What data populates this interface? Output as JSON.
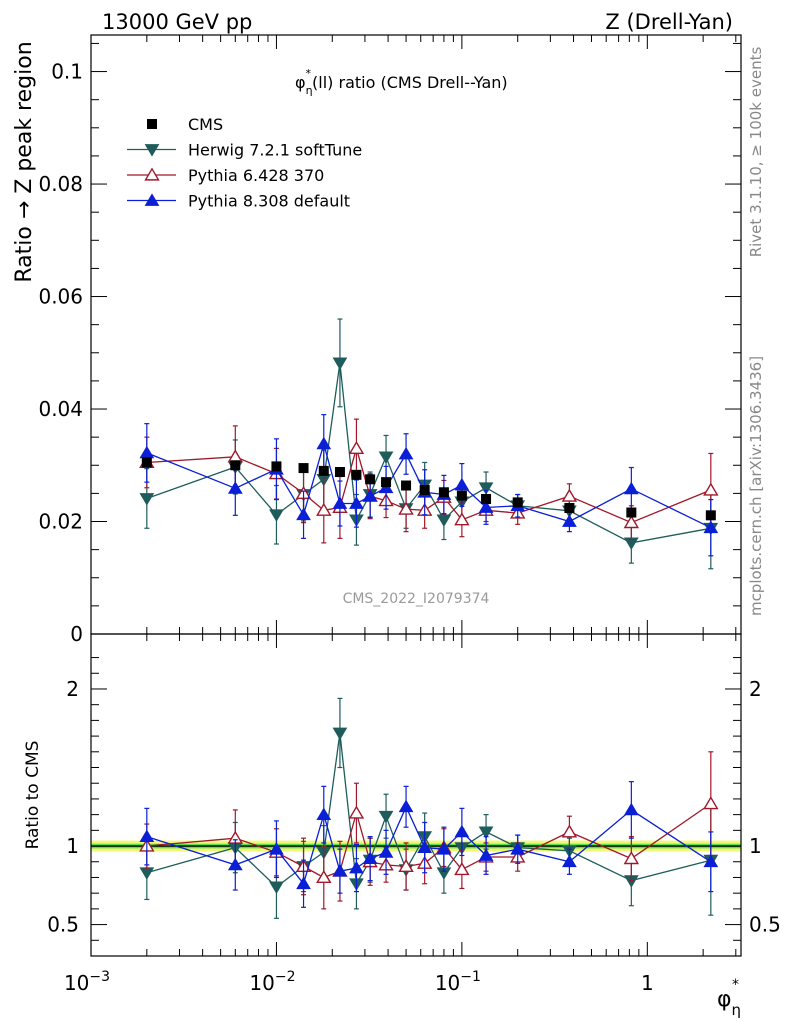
{
  "header": {
    "left": "13000 GeV pp",
    "right": "Z (Drell-Yan)"
  },
  "side_text": {
    "rivet": "Rivet 3.1.10, ≥ 100k events",
    "mcplots": "mcplots.cern.ch [arXiv:1306.3436]"
  },
  "watermark": "CMS_2022_I2079374",
  "colors": {
    "CMS": "#000000",
    "Herwig": "#1f5c5c",
    "Pythia6": "#a0182a",
    "Pythia8": "#0a1fd6",
    "band_inner": "#5ee04d",
    "band_outer": "#f2f77a"
  },
  "chart_data": [
    {
      "type": "scatter",
      "panel": "main",
      "title_parts": {
        "phi": "φ",
        "star": "*",
        "eta": "η",
        "rest": "(ll) ratio (CMS Drell--Yan)"
      },
      "ylabel": "Ratio → Z peak region",
      "ylim": [
        0,
        0.1065
      ],
      "xscale": "log",
      "xlim": [
        0.001,
        3.2
      ],
      "yticks": [
        0,
        0.02,
        0.04,
        0.06,
        0.08,
        0.1
      ],
      "ytick_labels": [
        "0",
        "0.02",
        "0.04",
        "0.06",
        "0.08",
        "0.1"
      ],
      "legend_position": "top-left",
      "series": [
        {
          "name": "CMS",
          "marker": "square",
          "x": [
            0.002,
            0.006,
            0.01,
            0.014,
            0.018,
            0.022,
            0.027,
            0.032,
            0.039,
            0.05,
            0.063,
            0.08,
            0.1,
            0.135,
            0.2,
            0.38,
            0.82,
            2.2
          ],
          "y": [
            0.0305,
            0.03,
            0.0298,
            0.0295,
            0.029,
            0.0288,
            0.0283,
            0.0275,
            0.027,
            0.0264,
            0.0256,
            0.0252,
            0.0246,
            0.024,
            0.0234,
            0.0224,
            0.0216,
            0.0211
          ]
        },
        {
          "name": "Herwig 7.2.1 softTune",
          "marker": "triangle-down",
          "x": [
            0.002,
            0.006,
            0.01,
            0.014,
            0.018,
            0.022,
            0.027,
            0.032,
            0.039,
            0.05,
            0.063,
            0.08,
            0.1,
            0.135,
            0.2,
            0.38,
            0.82,
            2.2
          ],
          "y": [
            0.0241,
            0.0297,
            0.0212,
            0.0248,
            0.0275,
            0.0482,
            0.0203,
            0.0248,
            0.0315,
            0.0223,
            0.0265,
            0.0203,
            0.0235,
            0.026,
            0.0228,
            0.0219,
            0.0162,
            0.0188
          ],
          "err": [
            0.0053,
            0.0048,
            0.0052,
            0.0047,
            0.0052,
            0.0078,
            0.0045,
            0.004,
            0.0038,
            0.0035,
            0.004,
            0.0035,
            0.0032,
            0.0028,
            0.002,
            0.002,
            0.0036,
            0.0072
          ]
        },
        {
          "name": "Pythia 6.428 370",
          "marker": "triangle-up-open",
          "x": [
            0.002,
            0.006,
            0.01,
            0.014,
            0.018,
            0.022,
            0.027,
            0.032,
            0.039,
            0.05,
            0.063,
            0.08,
            0.1,
            0.135,
            0.2,
            0.38,
            0.82,
            2.2
          ],
          "y": [
            0.0305,
            0.0315,
            0.0285,
            0.025,
            0.022,
            0.0225,
            0.033,
            0.0245,
            0.0237,
            0.0222,
            0.022,
            0.0243,
            0.0203,
            0.022,
            0.0215,
            0.0245,
            0.0198,
            0.0256
          ],
          "err": [
            0.0045,
            0.0055,
            0.0045,
            0.0052,
            0.0058,
            0.0055,
            0.0052,
            0.004,
            0.003,
            0.004,
            0.0032,
            0.003,
            0.003,
            0.002,
            0.002,
            0.0022,
            0.003,
            0.0065
          ]
        },
        {
          "name": "Pythia 8.308 default",
          "marker": "triangle-up",
          "x": [
            0.002,
            0.006,
            0.01,
            0.014,
            0.018,
            0.022,
            0.027,
            0.032,
            0.039,
            0.05,
            0.063,
            0.08,
            0.1,
            0.135,
            0.2,
            0.38,
            0.82,
            2.2
          ],
          "y": [
            0.0322,
            0.0259,
            0.0293,
            0.0212,
            0.0338,
            0.0232,
            0.0232,
            0.0245,
            0.026,
            0.032,
            0.0252,
            0.0248,
            0.0265,
            0.0225,
            0.0228,
            0.02,
            0.0258,
            0.0189
          ],
          "err": [
            0.0052,
            0.0048,
            0.0054,
            0.0042,
            0.0052,
            0.004,
            0.0042,
            0.0038,
            0.0038,
            0.0036,
            0.004,
            0.0034,
            0.0038,
            0.003,
            0.002,
            0.0018,
            0.0038,
            0.005
          ]
        }
      ]
    },
    {
      "type": "scatter",
      "panel": "ratio",
      "ylabel": "Ratio to CMS",
      "ylim": [
        0.3,
        2.35
      ],
      "xscale": "log",
      "xlim": [
        0.001,
        3.2
      ],
      "xlabel_parts": {
        "phi": "φ",
        "star": "*",
        "eta": "η"
      },
      "yticks": [
        0.5,
        1,
        2
      ],
      "ytick_labels": [
        "0.5",
        "1",
        "2"
      ],
      "xticks": [
        0.001,
        0.01,
        0.1,
        1
      ],
      "xtick_labels": [
        {
          "base": "10",
          "exp": "−3"
        },
        {
          "base": "10",
          "exp": "−2"
        },
        {
          "base": "10",
          "exp": "−1"
        },
        {
          "base": "1",
          "exp": ""
        }
      ],
      "band_inner": [
        0.985,
        1.015
      ],
      "band_outer": [
        0.965,
        1.035
      ],
      "series": [
        {
          "name": "Herwig 7.2.1 softTune",
          "marker": "triangle-down",
          "x": [
            0.002,
            0.006,
            0.01,
            0.014,
            0.018,
            0.022,
            0.027,
            0.032,
            0.039,
            0.05,
            0.063,
            0.08,
            0.1,
            0.135,
            0.2,
            0.38,
            0.82,
            2.2
          ],
          "y": [
            0.83,
            0.99,
            0.74,
            0.87,
            0.96,
            1.72,
            0.76,
            0.91,
            1.19,
            0.85,
            1.06,
            0.83,
            0.99,
            1.09,
            0.99,
            0.97,
            0.78,
            0.91
          ],
          "err": [
            0.17,
            0.16,
            0.2,
            0.16,
            0.17,
            0.22,
            0.16,
            0.14,
            0.14,
            0.13,
            0.15,
            0.13,
            0.12,
            0.11,
            0.08,
            0.08,
            0.16,
            0.35
          ]
        },
        {
          "name": "Pythia 6.428 370",
          "marker": "triangle-up-open",
          "x": [
            0.002,
            0.006,
            0.01,
            0.014,
            0.018,
            0.022,
            0.027,
            0.032,
            0.039,
            0.05,
            0.063,
            0.08,
            0.1,
            0.135,
            0.2,
            0.38,
            0.82,
            2.2
          ],
          "y": [
            1.0,
            1.05,
            0.96,
            0.87,
            0.8,
            0.84,
            1.21,
            0.9,
            0.88,
            0.87,
            0.89,
            0.99,
            0.85,
            0.93,
            0.93,
            1.09,
            0.92,
            1.27
          ],
          "err": [
            0.14,
            0.18,
            0.15,
            0.18,
            0.2,
            0.19,
            0.19,
            0.15,
            0.11,
            0.15,
            0.13,
            0.12,
            0.12,
            0.09,
            0.09,
            0.1,
            0.14,
            0.33
          ]
        },
        {
          "name": "Pythia 8.308 default",
          "marker": "triangle-up",
          "x": [
            0.002,
            0.006,
            0.01,
            0.014,
            0.018,
            0.022,
            0.027,
            0.032,
            0.039,
            0.05,
            0.063,
            0.08,
            0.1,
            0.135,
            0.2,
            0.38,
            0.82,
            2.2
          ],
          "y": [
            1.06,
            0.88,
            0.98,
            0.76,
            1.2,
            0.84,
            0.86,
            0.92,
            0.96,
            1.25,
            0.99,
            0.98,
            1.09,
            0.94,
            0.98,
            0.9,
            1.23,
            0.9
          ],
          "err": [
            0.18,
            0.16,
            0.18,
            0.15,
            0.18,
            0.14,
            0.15,
            0.14,
            0.14,
            0.13,
            0.16,
            0.14,
            0.15,
            0.12,
            0.09,
            0.08,
            0.18,
            0.19
          ]
        }
      ]
    }
  ]
}
